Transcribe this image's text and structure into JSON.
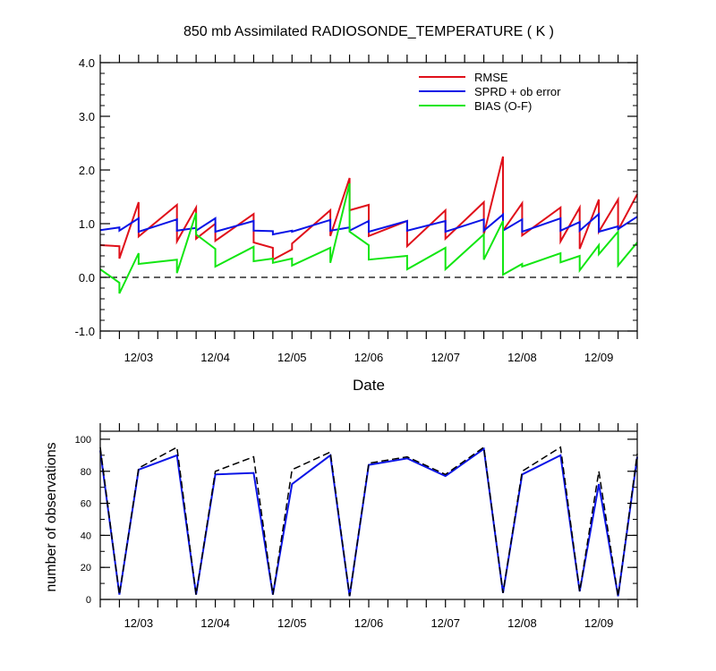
{
  "figure": {
    "title": "850 mb Assimilated RADIOSONDE_TEMPERATURE ( K )",
    "colors": {
      "rmse": "#e0101a",
      "spread": "#0a14e6",
      "bias": "#12e612",
      "obs_used": "#0a14e6",
      "obs_total": "#000000",
      "axis": "#000000"
    }
  },
  "chart_data": [
    {
      "type": "line",
      "title": "850 mb Assimilated RADIOSONDE_TEMPERATURE ( K )",
      "xlabel": "Date",
      "ylabel": "",
      "ylim": [
        -1.0,
        4.0
      ],
      "yticks": [
        -1.0,
        0.0,
        1.0,
        2.0,
        3.0,
        4.0
      ],
      "ytick_labels": [
        "-1.0",
        "0.0",
        "1.0",
        "2.0",
        "3.0",
        "4.0"
      ],
      "xlim": [
        "12/02 12Z",
        "12/09 12Z"
      ],
      "xtick_labels": [
        "12/03",
        "12/04",
        "12/05",
        "12/06",
        "12/07",
        "12/08",
        "12/09"
      ],
      "reference_line": {
        "y": 0.0,
        "style": "dashed"
      },
      "legend": {
        "location": "top-right",
        "entries": [
          "RMSE",
          "SPRD + ob error",
          "BIAS (O-F)"
        ]
      },
      "x_bins": [
        "12/02 12Z",
        "12/02 18Z",
        "12/03 00Z",
        "12/03 06Z",
        "12/03 12Z",
        "12/03 18Z",
        "12/04 00Z",
        "12/04 06Z",
        "12/04 12Z",
        "12/04 18Z",
        "12/05 00Z",
        "12/05 06Z",
        "12/05 12Z",
        "12/05 18Z",
        "12/06 00Z",
        "12/06 06Z",
        "12/06 12Z",
        "12/06 18Z",
        "12/07 00Z",
        "12/07 06Z",
        "12/07 12Z",
        "12/07 18Z",
        "12/08 00Z",
        "12/08 06Z",
        "12/08 12Z",
        "12/08 18Z",
        "12/09 00Z",
        "12/09 06Z",
        "12/09 12Z"
      ],
      "series": [
        {
          "name": "RMSE",
          "color": "#e0101a",
          "segments": [
            [
              [
                0.0,
                0.6
              ],
              [
                0.25,
                0.58
              ],
              [
                0.25,
                0.35
              ],
              [
                0.5,
                1.4
              ],
              [
                0.5,
                0.76
              ],
              [
                1.0,
                1.35
              ],
              [
                1.0,
                0.67
              ],
              [
                1.25,
                1.3
              ],
              [
                1.25,
                0.72
              ],
              [
                1.5,
                1.0
              ],
              [
                1.5,
                0.68
              ],
              [
                2.0,
                1.18
              ],
              [
                2.0,
                0.65
              ],
              [
                2.25,
                0.55
              ],
              [
                2.25,
                0.33
              ],
              [
                2.5,
                0.52
              ],
              [
                2.5,
                0.63
              ],
              [
                3.0,
                1.25
              ],
              [
                3.0,
                0.77
              ],
              [
                3.25,
                1.85
              ],
              [
                3.25,
                1.25
              ],
              [
                3.5,
                1.35
              ],
              [
                3.5,
                0.77
              ],
              [
                4.0,
                1.05
              ],
              [
                4.0,
                0.58
              ],
              [
                4.5,
                1.25
              ],
              [
                4.5,
                0.72
              ],
              [
                5.0,
                1.4
              ],
              [
                5.0,
                0.8
              ],
              [
                5.25,
                2.25
              ],
              [
                5.25,
                0.87
              ],
              [
                5.5,
                1.38
              ],
              [
                5.5,
                0.78
              ],
              [
                6.0,
                1.3
              ],
              [
                6.0,
                0.67
              ],
              [
                6.25,
                1.3
              ],
              [
                6.25,
                0.53
              ],
              [
                6.5,
                1.45
              ],
              [
                6.5,
                0.85
              ],
              [
                6.75,
                1.45
              ],
              [
                6.75,
                0.88
              ],
              [
                7.0,
                1.55
              ]
            ]
          ]
        },
        {
          "name": "SPRD + ob error",
          "color": "#0a14e6",
          "segments": [
            [
              [
                0.0,
                0.88
              ],
              [
                0.25,
                0.93
              ],
              [
                0.25,
                0.87
              ],
              [
                0.5,
                1.1
              ],
              [
                0.5,
                0.85
              ],
              [
                1.0,
                1.08
              ],
              [
                1.0,
                0.87
              ],
              [
                1.25,
                0.92
              ],
              [
                1.25,
                0.87
              ],
              [
                1.5,
                1.1
              ],
              [
                1.5,
                0.85
              ],
              [
                2.0,
                1.05
              ],
              [
                2.0,
                0.87
              ],
              [
                2.25,
                0.86
              ],
              [
                2.25,
                0.8
              ],
              [
                2.5,
                0.87
              ],
              [
                2.5,
                0.85
              ],
              [
                3.0,
                1.07
              ],
              [
                3.0,
                0.87
              ],
              [
                3.25,
                0.93
              ],
              [
                3.25,
                0.87
              ],
              [
                3.5,
                1.05
              ],
              [
                3.5,
                0.85
              ],
              [
                4.0,
                1.05
              ],
              [
                4.0,
                0.87
              ],
              [
                4.5,
                1.05
              ],
              [
                4.5,
                0.85
              ],
              [
                5.0,
                1.08
              ],
              [
                5.0,
                0.87
              ],
              [
                5.25,
                1.17
              ],
              [
                5.25,
                0.87
              ],
              [
                5.5,
                1.08
              ],
              [
                5.5,
                0.85
              ],
              [
                6.0,
                1.1
              ],
              [
                6.0,
                0.87
              ],
              [
                6.25,
                1.03
              ],
              [
                6.25,
                0.87
              ],
              [
                6.5,
                1.18
              ],
              [
                6.5,
                0.85
              ],
              [
                6.75,
                0.95
              ],
              [
                6.75,
                0.9
              ],
              [
                7.0,
                1.13
              ]
            ]
          ]
        },
        {
          "name": "BIAS (O-F)",
          "color": "#12e612",
          "segments": [
            [
              [
                0.0,
                0.15
              ],
              [
                0.25,
                -0.1
              ],
              [
                0.25,
                -0.3
              ],
              [
                0.5,
                0.45
              ],
              [
                0.5,
                0.25
              ],
              [
                1.0,
                0.33
              ],
              [
                1.0,
                0.08
              ],
              [
                1.25,
                1.2
              ],
              [
                1.25,
                0.8
              ],
              [
                1.5,
                0.53
              ],
              [
                1.5,
                0.2
              ],
              [
                2.0,
                0.57
              ],
              [
                2.0,
                0.3
              ],
              [
                2.25,
                0.35
              ],
              [
                2.25,
                0.27
              ],
              [
                2.5,
                0.35
              ],
              [
                2.5,
                0.22
              ],
              [
                3.0,
                0.55
              ],
              [
                3.0,
                0.27
              ],
              [
                3.25,
                1.75
              ],
              [
                3.25,
                0.85
              ],
              [
                3.5,
                0.6
              ],
              [
                3.5,
                0.33
              ],
              [
                4.0,
                0.4
              ],
              [
                4.0,
                0.15
              ],
              [
                4.5,
                0.55
              ],
              [
                4.5,
                0.15
              ],
              [
                5.0,
                0.8
              ],
              [
                5.0,
                0.33
              ],
              [
                5.25,
                1.05
              ],
              [
                5.25,
                0.05
              ],
              [
                5.5,
                0.25
              ],
              [
                5.5,
                0.2
              ],
              [
                6.0,
                0.45
              ],
              [
                6.0,
                0.28
              ],
              [
                6.25,
                0.4
              ],
              [
                6.25,
                0.13
              ],
              [
                6.5,
                0.6
              ],
              [
                6.5,
                0.43
              ],
              [
                6.75,
                0.85
              ],
              [
                6.75,
                0.22
              ],
              [
                7.0,
                0.65
              ]
            ]
          ]
        }
      ]
    },
    {
      "type": "line",
      "title": "",
      "xlabel": "",
      "ylabel": "number of observations",
      "ylim": [
        0,
        105
      ],
      "yticks": [
        0,
        20,
        40,
        60,
        80,
        100
      ],
      "ytick_labels": [
        "0",
        "20",
        "40",
        "60",
        "80",
        "100"
      ],
      "xlim": [
        "12/02 12Z",
        "12/09 12Z"
      ],
      "xtick_labels": [
        "12/03",
        "12/04",
        "12/05",
        "12/06",
        "12/07",
        "12/08",
        "12/09"
      ],
      "x_bins": [
        "12/02 12Z",
        "12/02 18Z",
        "12/03 00Z",
        "12/03 12Z",
        "12/03 18Z",
        "12/04 00Z",
        "12/04 12Z",
        "12/04 18Z",
        "12/05 00Z",
        "12/05 12Z",
        "12/05 18Z",
        "12/06 00Z",
        "12/06 12Z",
        "12/07 00Z",
        "12/07 12Z",
        "12/07 18Z",
        "12/08 00Z",
        "12/08 12Z",
        "12/08 18Z",
        "12/09 00Z",
        "12/09 06Z",
        "12/09 12Z"
      ],
      "series": [
        {
          "name": "",
          "color": "#0a14e6",
          "style": "solid",
          "points": [
            [
              0.0,
              93
            ],
            [
              0.25,
              3
            ],
            [
              0.5,
              81
            ],
            [
              1.0,
              90
            ],
            [
              1.25,
              3
            ],
            [
              1.5,
              78
            ],
            [
              2.0,
              79
            ],
            [
              2.25,
              3
            ],
            [
              2.5,
              72
            ],
            [
              3.0,
              90
            ],
            [
              3.25,
              2
            ],
            [
              3.5,
              84
            ],
            [
              4.0,
              88
            ],
            [
              4.5,
              77
            ],
            [
              5.0,
              94
            ],
            [
              5.25,
              4
            ],
            [
              5.5,
              78
            ],
            [
              6.0,
              90
            ],
            [
              6.25,
              5
            ],
            [
              6.5,
              72
            ],
            [
              6.75,
              2
            ],
            [
              7.0,
              89
            ]
          ]
        },
        {
          "name": "",
          "color": "#000000",
          "style": "dashed",
          "points": [
            [
              0.0,
              95
            ],
            [
              0.25,
              3
            ],
            [
              0.5,
              82
            ],
            [
              1.0,
              95
            ],
            [
              1.25,
              3
            ],
            [
              1.5,
              80
            ],
            [
              2.0,
              89
            ],
            [
              2.25,
              3
            ],
            [
              2.5,
              81
            ],
            [
              3.0,
              92
            ],
            [
              3.25,
              2
            ],
            [
              3.5,
              85
            ],
            [
              4.0,
              89
            ],
            [
              4.5,
              78
            ],
            [
              5.0,
              95
            ],
            [
              5.25,
              4
            ],
            [
              5.5,
              80
            ],
            [
              6.0,
              95
            ],
            [
              6.25,
              5
            ],
            [
              6.5,
              80
            ],
            [
              6.75,
              2
            ],
            [
              7.0,
              91
            ]
          ]
        }
      ]
    }
  ]
}
